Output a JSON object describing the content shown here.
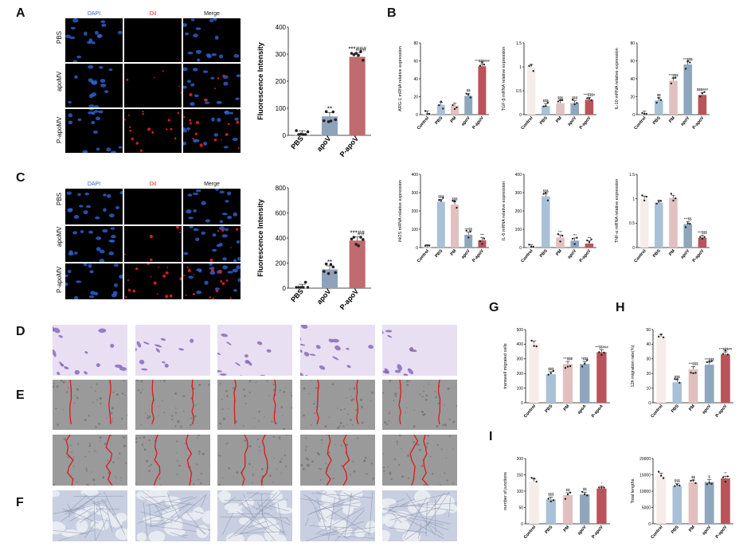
{
  "panels": {
    "A": {
      "label": "A",
      "channels": [
        "DAPI",
        "DiI",
        "Merge"
      ],
      "rows": [
        "PBS",
        "apoMV",
        "P-apoMV"
      ]
    },
    "B": {
      "label": "B"
    },
    "C": {
      "label": "C",
      "channels": [
        "DAPI",
        "DiI",
        "Merge"
      ],
      "rows": [
        "PBS",
        "apoMV",
        "P-apoMV"
      ]
    },
    "D": {
      "label": "D"
    },
    "E": {
      "label": "E"
    },
    "F": {
      "label": "F"
    },
    "G": {
      "label": "G"
    },
    "H": {
      "label": "H"
    },
    "I": {
      "label": "I"
    }
  },
  "colors": {
    "dapi": "#2f63d6",
    "dii": "#e0201f",
    "control": "#f6ecea",
    "pbs": "#a9c1d6",
    "pm": "#e2c0c0",
    "apo": "#8fa6bd",
    "papo": "#b9545a",
    "fi_pbs": "#cfcfcf",
    "fi_apov": "#8ea3bb",
    "fi_papov": "#bf6b6f",
    "crystal": "#7e5bb0",
    "wound_line": "#e01818"
  },
  "chart_data": [
    {
      "id": "A_fi",
      "type": "bar",
      "categories": [
        "PBS",
        "apoV",
        "P-apoV"
      ],
      "values": [
        3,
        70,
        290
      ],
      "ylabel": "Fluorescence Intensity",
      "ylim": [
        0,
        400
      ],
      "yticks": [
        0,
        100,
        200,
        300,
        400
      ],
      "sig": [
        "",
        "**",
        "***###"
      ],
      "colorkeys": [
        "fi_pbs",
        "fi_apov",
        "fi_papov"
      ]
    },
    {
      "id": "C_fi",
      "type": "bar",
      "categories": [
        "PBS",
        "apoV",
        "P-apoV"
      ],
      "values": [
        3,
        150,
        380
      ],
      "ylabel": "Fluorescence Intensity",
      "ylim": [
        0,
        800
      ],
      "yticks": [
        0,
        200,
        400,
        600,
        800
      ],
      "sig": [
        "",
        "**",
        "***##"
      ],
      "colorkeys": [
        "fi_pbs",
        "fi_apov",
        "fi_papov"
      ]
    },
    {
      "id": "B1",
      "type": "bar",
      "categories": [
        "Control",
        "PBS",
        "PM",
        "apoV",
        "P-apoV"
      ],
      "values": [
        1,
        11,
        10,
        21,
        54
      ],
      "ylabel": "ARG-1 mRNA relative expression",
      "ylim": [
        0,
        80
      ],
      "yticks": [
        0,
        20,
        40,
        60,
        80
      ],
      "sig": [
        "",
        "",
        "",
        "$$",
        "***$$$###"
      ],
      "colorkeys": [
        "control",
        "pbs",
        "pm",
        "apo",
        "papo"
      ]
    },
    {
      "id": "B2",
      "type": "bar",
      "categories": [
        "Control",
        "PBS",
        "PM",
        "apoV",
        "P-apoV"
      ],
      "values": [
        1.0,
        0.18,
        0.24,
        0.24,
        0.31
      ],
      "ylabel": "TGF-β mRNA relative expression",
      "ylim": [
        0,
        1.5
      ],
      "yticks": [
        0.0,
        0.5,
        1.0,
        1.5
      ],
      "sig": [
        "",
        "$$$",
        "$$$",
        "$$$",
        "***$$$#"
      ],
      "colorkeys": [
        "control",
        "pbs",
        "pm",
        "apo",
        "papo"
      ]
    },
    {
      "id": "B3",
      "type": "bar",
      "categories": [
        "Control",
        "PBS",
        "PM",
        "apoV",
        "P-apoV"
      ],
      "values": [
        1,
        16,
        38,
        56,
        22
      ],
      "ylabel": "IL-10 mRNA relative expression",
      "ylim": [
        0,
        80
      ],
      "yticks": [
        0,
        20,
        40,
        60,
        80
      ],
      "sig": [
        "",
        "$$",
        "***$$$",
        "***$$$",
        "$$$###"
      ],
      "colorkeys": [
        "control",
        "pbs",
        "pm",
        "apo",
        "papo"
      ]
    },
    {
      "id": "B4",
      "type": "bar",
      "categories": [
        "Control",
        "PBS",
        "PM",
        "apoV",
        "P-apoV"
      ],
      "values": [
        1,
        250,
        235,
        70,
        40
      ],
      "ylabel": "iNOS mRNA relative expression",
      "ylim": [
        0,
        400
      ],
      "yticks": [
        0,
        100,
        200,
        300,
        400
      ],
      "sig": [
        "",
        "$$$",
        "$$$",
        "***$$",
        "***"
      ],
      "colorkeys": [
        "control",
        "pbs",
        "pm",
        "apo",
        "papo"
      ]
    },
    {
      "id": "B5",
      "type": "bar",
      "categories": [
        "Control",
        "PBS",
        "PM",
        "apoV",
        "P-apoV"
      ],
      "values": [
        1,
        280,
        55,
        38,
        22
      ],
      "ylabel": "IL-6 mRNA relative expression",
      "ylim": [
        0,
        400
      ],
      "yticks": [
        0,
        100,
        200,
        300,
        400
      ],
      "sig": [
        "",
        "$$$",
        "***",
        "***",
        "***"
      ],
      "colorkeys": [
        "control",
        "pbs",
        "pm",
        "apo",
        "papo"
      ]
    },
    {
      "id": "B6",
      "type": "bar",
      "categories": [
        "Control",
        "PBS",
        "PM",
        "apoV",
        "P-apoV"
      ],
      "values": [
        1.0,
        0.92,
        1.02,
        0.48,
        0.2
      ],
      "ylabel": "TNF-α mRNA relative expression",
      "ylim": [
        0,
        1.5
      ],
      "yticks": [
        0.0,
        0.5,
        1.0,
        1.5
      ],
      "sig": [
        "",
        "",
        "",
        "***$$",
        "***$$$"
      ],
      "colorkeys": [
        "control",
        "pbs",
        "pm",
        "apo",
        "papo"
      ]
    },
    {
      "id": "G",
      "type": "bar",
      "categories": [
        "Control",
        "PBS",
        "PM",
        "apoA",
        "P-apoA"
      ],
      "values": [
        405,
        195,
        265,
        265,
        345
      ],
      "ylabel": "transwell migrated cells",
      "ylim": [
        0,
        500
      ],
      "yticks": [
        0,
        100,
        200,
        300,
        400,
        500
      ],
      "sig": [
        "",
        "$$$",
        "***$$$",
        "*$$$",
        "***$$###"
      ],
      "colorkeys": [
        "control",
        "pbs",
        "pm",
        "apo",
        "papo"
      ]
    },
    {
      "id": "H",
      "type": "bar",
      "categories": [
        "Control",
        "PBS",
        "PM",
        "apoV",
        "P-apoV"
      ],
      "values": [
        45,
        14,
        23,
        26,
        33
      ],
      "ylabel": "12h migration rate(%)",
      "ylim": [
        0,
        50
      ],
      "yticks": [
        0,
        10,
        20,
        30,
        40,
        50
      ],
      "sig": [
        "",
        "$$$",
        "***$$$",
        "***$$$",
        "***$$$##"
      ],
      "colorkeys": [
        "control",
        "pbs",
        "pm",
        "apo",
        "papo"
      ]
    },
    {
      "id": "I1",
      "type": "bar",
      "categories": [
        "Control",
        "PBS",
        "PM",
        "apoV",
        "P-apoV"
      ],
      "values": [
        130,
        75,
        88,
        90,
        108
      ],
      "ylabel": "number of junctions",
      "ylim": [
        0,
        200
      ],
      "yticks": [
        0,
        50,
        100,
        150,
        200
      ],
      "sig": [
        "",
        "$$$",
        "$$",
        "$$",
        "*"
      ],
      "colorkeys": [
        "control",
        "pbs",
        "pm",
        "apo",
        "papo"
      ]
    },
    {
      "id": "I2",
      "type": "bar",
      "categories": [
        "Control",
        "PBS",
        "PM",
        "apoV",
        "P-apoV"
      ],
      "values": [
        14800,
        11600,
        12700,
        12800,
        13900
      ],
      "ylabel": "Total lengths",
      "ylim": [
        0,
        20000
      ],
      "yticks": [
        0,
        5000,
        10000,
        15000,
        20000
      ],
      "sig": [
        "",
        "$$$",
        "$$",
        "$",
        "**"
      ],
      "colorkeys": [
        "control",
        "pbs",
        "pm",
        "apo",
        "papo"
      ]
    }
  ]
}
